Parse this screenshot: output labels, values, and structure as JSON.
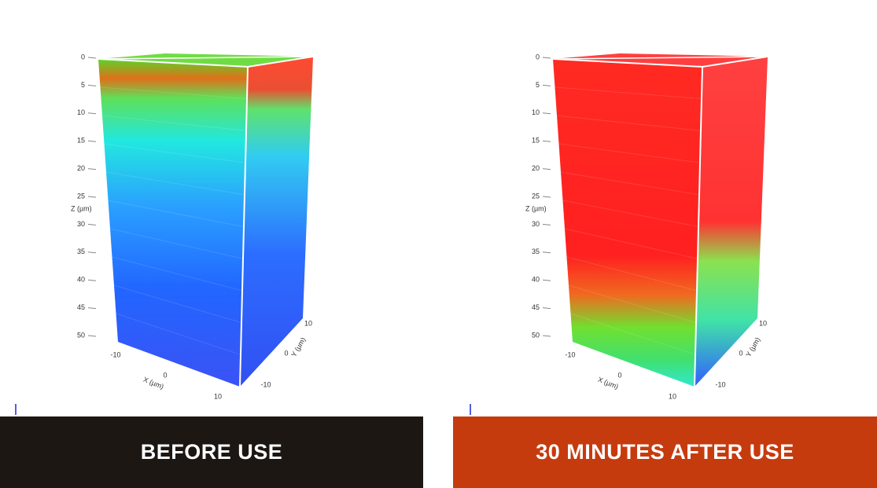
{
  "panels": [
    {
      "caption": "BEFORE USE",
      "z_label": "Z (µm)",
      "z_ticks": [
        0,
        5,
        10,
        15,
        20,
        25,
        30,
        35,
        40,
        45,
        50
      ],
      "x_label": "X (µm)",
      "x_ticks": [
        -10,
        0,
        10
      ],
      "y_label": "Y (µm)",
      "y_ticks": [
        10,
        0,
        -10
      ]
    },
    {
      "caption": "30 MINUTES AFTER USE",
      "z_label": "Z (µm)",
      "z_ticks": [
        0,
        5,
        10,
        15,
        20,
        25,
        30,
        35,
        40,
        45,
        50
      ],
      "x_label": "X (µm)",
      "x_ticks": [
        -10,
        0,
        10
      ],
      "y_label": "Y (µm)",
      "y_ticks": [
        10,
        0,
        -10
      ]
    }
  ]
}
